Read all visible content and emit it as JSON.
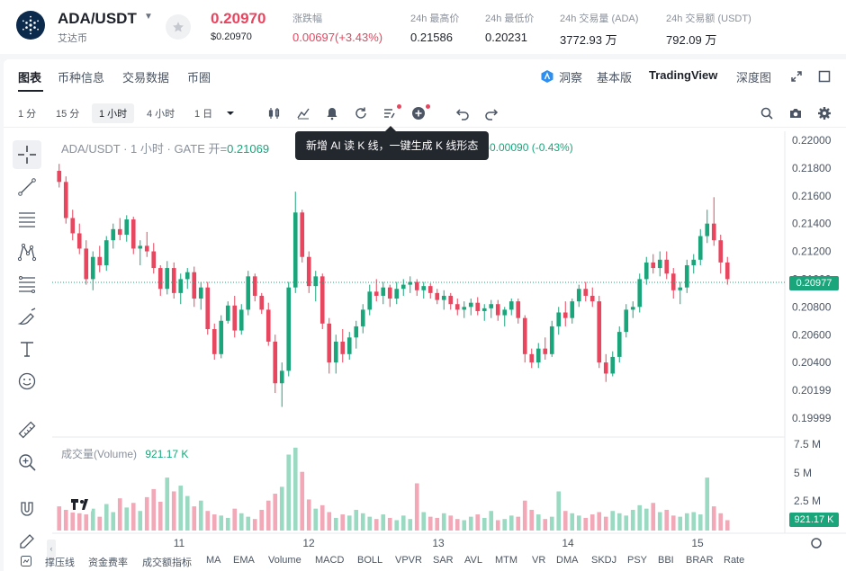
{
  "ticker": {
    "pair": "ADA/USDT",
    "coin_cn": "艾达币",
    "last_price": "0.20970",
    "last_price_usd": "$0.20970",
    "stats": [
      {
        "label": "涨跌幅",
        "value": "0.00697(+3.43%)",
        "color": "red"
      },
      {
        "label": "24h 最高价",
        "value": "0.21586"
      },
      {
        "label": "24h 最低价",
        "value": "0.20231"
      },
      {
        "label": "24h 交易量 (ADA)",
        "value": "3772.93 万"
      },
      {
        "label": "24h 交易额 (USDT)",
        "value": "792.09 万"
      }
    ]
  },
  "tabs": {
    "left": [
      "图表",
      "币种信息",
      "交易数据",
      "币圈"
    ],
    "dongcha": "洞察",
    "basic": "基本版",
    "tradingview": "TradingView",
    "depth": "深度图"
  },
  "toolbar": {
    "timeframes": [
      "1 分",
      "15 分",
      "1 小时",
      "4 小时",
      "1 日"
    ],
    "active_timeframe": "1 小时"
  },
  "legend": {
    "title": "ADA/USDT · 1 小时 · GATE",
    "open_label": "开=",
    "open_value": "0.21069",
    "change": "-0.00090 (-0.43%)",
    "tooltip": "新增 AI 读 K 线，一键生成 K 线形态"
  },
  "volume": {
    "label": "成交量(Volume)",
    "value": "921.17 K"
  },
  "price_axis": [
    "0.22000",
    "0.21800",
    "0.21600",
    "0.21400",
    "0.21200",
    "0.21000",
    "0.20800",
    "0.20600",
    "0.20400",
    "0.20199",
    "0.19999"
  ],
  "current_price_tag": "0.20977",
  "volume_axis": [
    "7.5 M",
    "5 M",
    "2.5 M"
  ],
  "current_volume_tag": "921.17 K",
  "time_axis": [
    "11",
    "12",
    "13",
    "14",
    "15"
  ],
  "indicators": [
    "撑压线",
    "资金费率",
    "成交额指标",
    "MA",
    "EMA",
    "Volume",
    "MACD",
    "BOLL",
    "VPVR",
    "SAR",
    "AVL",
    "MTM",
    "VR",
    "DMA",
    "SKDJ",
    "PSY",
    "BBI",
    "BRAR",
    "Rate"
  ],
  "colors": {
    "up": "#1aa57a",
    "down": "#e8455f",
    "up_vol": "#9ad9c2",
    "down_vol": "#f2a8b6"
  },
  "chart_data": {
    "type": "candlestick",
    "price_range": [
      0.19999,
      0.22
    ],
    "volume_range": [
      0,
      7500000
    ],
    "candles": [
      [
        0.2178,
        0.2183,
        0.2166,
        0.217
      ],
      [
        0.217,
        0.2174,
        0.214,
        0.2144
      ],
      [
        0.2144,
        0.215,
        0.2128,
        0.2133
      ],
      [
        0.2133,
        0.214,
        0.2118,
        0.2122
      ],
      [
        0.2122,
        0.2128,
        0.2096,
        0.21
      ],
      [
        0.21,
        0.212,
        0.2092,
        0.2116
      ],
      [
        0.2116,
        0.2124,
        0.2105,
        0.211
      ],
      [
        0.211,
        0.2131,
        0.2106,
        0.2128
      ],
      [
        0.2128,
        0.214,
        0.2122,
        0.2136
      ],
      [
        0.2136,
        0.2144,
        0.2128,
        0.2132
      ],
      [
        0.2132,
        0.2146,
        0.2127,
        0.2143
      ],
      [
        0.2143,
        0.2145,
        0.2118,
        0.2122
      ],
      [
        0.2122,
        0.2128,
        0.211,
        0.2124
      ],
      [
        0.2124,
        0.2134,
        0.2116,
        0.212
      ],
      [
        0.212,
        0.2126,
        0.2104,
        0.2108
      ],
      [
        0.2108,
        0.211,
        0.2088,
        0.2093
      ],
      [
        0.2093,
        0.2113,
        0.2089,
        0.2108
      ],
      [
        0.2108,
        0.2112,
        0.2086,
        0.209
      ],
      [
        0.209,
        0.2104,
        0.2082,
        0.21
      ],
      [
        0.21,
        0.2108,
        0.2093,
        0.2105
      ],
      [
        0.2105,
        0.2109,
        0.208,
        0.2086
      ],
      [
        0.2086,
        0.2098,
        0.2078,
        0.2094
      ],
      [
        0.2094,
        0.2098,
        0.206,
        0.2064
      ],
      [
        0.2064,
        0.2068,
        0.2042,
        0.2046
      ],
      [
        0.2046,
        0.2074,
        0.2043,
        0.207
      ],
      [
        0.207,
        0.2084,
        0.2068,
        0.2081
      ],
      [
        0.2081,
        0.2088,
        0.2058,
        0.2063
      ],
      [
        0.2063,
        0.2082,
        0.206,
        0.2078
      ],
      [
        0.2078,
        0.2106,
        0.2074,
        0.2102
      ],
      [
        0.2102,
        0.2104,
        0.2084,
        0.2088
      ],
      [
        0.2088,
        0.209,
        0.2075,
        0.2078
      ],
      [
        0.2078,
        0.2083,
        0.2052,
        0.2055
      ],
      [
        0.2055,
        0.206,
        0.2018,
        0.2025
      ],
      [
        0.2025,
        0.204,
        0.2008,
        0.2034
      ],
      [
        0.2034,
        0.2098,
        0.203,
        0.2094
      ],
      [
        0.2094,
        0.2163,
        0.209,
        0.2148
      ],
      [
        0.2148,
        0.215,
        0.2112,
        0.2116
      ],
      [
        0.2116,
        0.212,
        0.209,
        0.2095
      ],
      [
        0.2095,
        0.2106,
        0.2084,
        0.2102
      ],
      [
        0.2102,
        0.2104,
        0.2064,
        0.2068
      ],
      [
        0.2068,
        0.2072,
        0.2032,
        0.204
      ],
      [
        0.204,
        0.206,
        0.2032,
        0.2055
      ],
      [
        0.2055,
        0.2064,
        0.204,
        0.2046
      ],
      [
        0.2046,
        0.2062,
        0.2042,
        0.2058
      ],
      [
        0.2058,
        0.207,
        0.205,
        0.2066
      ],
      [
        0.2066,
        0.2082,
        0.2061,
        0.2078
      ],
      [
        0.2078,
        0.2096,
        0.2074,
        0.2091
      ],
      [
        0.2091,
        0.21,
        0.2084,
        0.2088
      ],
      [
        0.2088,
        0.2098,
        0.2082,
        0.2094
      ],
      [
        0.2094,
        0.2096,
        0.208,
        0.2086
      ],
      [
        0.2086,
        0.2098,
        0.2082,
        0.2093
      ],
      [
        0.2093,
        0.21,
        0.2088,
        0.2096
      ],
      [
        0.2096,
        0.2102,
        0.209,
        0.2098
      ],
      [
        0.2098,
        0.21,
        0.2088,
        0.2092
      ],
      [
        0.2092,
        0.2098,
        0.2086,
        0.2095
      ],
      [
        0.2095,
        0.2097,
        0.2086,
        0.209
      ],
      [
        0.209,
        0.2093,
        0.2082,
        0.2085
      ],
      [
        0.2085,
        0.2092,
        0.2078,
        0.2088
      ],
      [
        0.2088,
        0.209,
        0.2078,
        0.2082
      ],
      [
        0.2082,
        0.2086,
        0.2074,
        0.2078
      ],
      [
        0.2078,
        0.2084,
        0.2072,
        0.208
      ],
      [
        0.208,
        0.2086,
        0.2074,
        0.2083
      ],
      [
        0.2083,
        0.2087,
        0.2074,
        0.2077
      ],
      [
        0.2077,
        0.2082,
        0.207,
        0.2079
      ],
      [
        0.2079,
        0.2085,
        0.2072,
        0.2082
      ],
      [
        0.2082,
        0.2085,
        0.207,
        0.2074
      ],
      [
        0.2074,
        0.208,
        0.2066,
        0.2078
      ],
      [
        0.2078,
        0.2086,
        0.2074,
        0.2084
      ],
      [
        0.2084,
        0.2086,
        0.2068,
        0.2072
      ],
      [
        0.2072,
        0.2074,
        0.204,
        0.2046
      ],
      [
        0.2046,
        0.205,
        0.2036,
        0.204
      ],
      [
        0.204,
        0.2054,
        0.2036,
        0.205
      ],
      [
        0.205,
        0.2058,
        0.2042,
        0.2046
      ],
      [
        0.2046,
        0.207,
        0.2044,
        0.2066
      ],
      [
        0.2066,
        0.208,
        0.206,
        0.2076
      ],
      [
        0.2076,
        0.2084,
        0.2066,
        0.2072
      ],
      [
        0.2072,
        0.2086,
        0.2068,
        0.2084
      ],
      [
        0.2084,
        0.2096,
        0.208,
        0.2093
      ],
      [
        0.2093,
        0.2098,
        0.2084,
        0.2088
      ],
      [
        0.2088,
        0.2094,
        0.208,
        0.2084
      ],
      [
        0.2084,
        0.2088,
        0.2036,
        0.204
      ],
      [
        0.204,
        0.2046,
        0.2026,
        0.2032
      ],
      [
        0.2032,
        0.2048,
        0.203,
        0.2044
      ],
      [
        0.2044,
        0.2066,
        0.204,
        0.2062
      ],
      [
        0.2062,
        0.2082,
        0.2058,
        0.2078
      ],
      [
        0.2078,
        0.2084,
        0.2072,
        0.208
      ],
      [
        0.208,
        0.2104,
        0.2076,
        0.21
      ],
      [
        0.21,
        0.2116,
        0.2096,
        0.2112
      ],
      [
        0.2112,
        0.2118,
        0.2104,
        0.2108
      ],
      [
        0.2108,
        0.212,
        0.2102,
        0.2114
      ],
      [
        0.2114,
        0.212,
        0.21,
        0.2104
      ],
      [
        0.2104,
        0.2108,
        0.2086,
        0.2092
      ],
      [
        0.2092,
        0.2098,
        0.2082,
        0.2094
      ],
      [
        0.2094,
        0.2114,
        0.209,
        0.211
      ],
      [
        0.211,
        0.2118,
        0.2104,
        0.2114
      ],
      [
        0.2114,
        0.2136,
        0.211,
        0.2131
      ],
      [
        0.2131,
        0.215,
        0.2126,
        0.214
      ],
      [
        0.214,
        0.2159,
        0.2124,
        0.2128
      ],
      [
        0.2128,
        0.2132,
        0.2104,
        0.2112
      ],
      [
        0.2112,
        0.2116,
        0.2096,
        0.21
      ]
    ],
    "volumes": [
      2.1,
      1.8,
      2.6,
      1.5,
      1.4,
      1.9,
      1.2,
      2.3,
      1.6,
      2.8,
      2.0,
      2.4,
      1.7,
      2.9,
      3.6,
      2.5,
      4.6,
      3.4,
      3.9,
      3.0,
      2.1,
      2.6,
      1.7,
      1.4,
      1.3,
      1.1,
      1.9,
      1.5,
      1.2,
      1.0,
      1.8,
      2.6,
      3.2,
      3.8,
      6.6,
      7.2,
      5.1,
      2.7,
      1.9,
      2.2,
      1.6,
      1.1,
      1.4,
      1.3,
      1.8,
      1.5,
      1.2,
      1.0,
      1.4,
      1.1,
      0.9,
      1.3,
      1.0,
      4.1,
      1.6,
      1.2,
      1.1,
      1.5,
      1.3,
      1.0,
      0.9,
      1.2,
      1.4,
      1.1,
      1.7,
      0.9,
      1.0,
      1.3,
      1.2,
      2.6,
      1.8,
      1.4,
      1.0,
      1.2,
      3.4,
      1.7,
      1.5,
      1.3,
      1.1,
      1.4,
      1.6,
      1.2,
      1.7,
      1.5,
      1.3,
      1.8,
      2.2,
      1.9,
      2.4,
      1.6,
      1.8,
      1.3,
      1.2,
      1.5,
      1.6,
      1.4,
      4.6,
      2.1,
      1.5,
      0.9
    ]
  }
}
